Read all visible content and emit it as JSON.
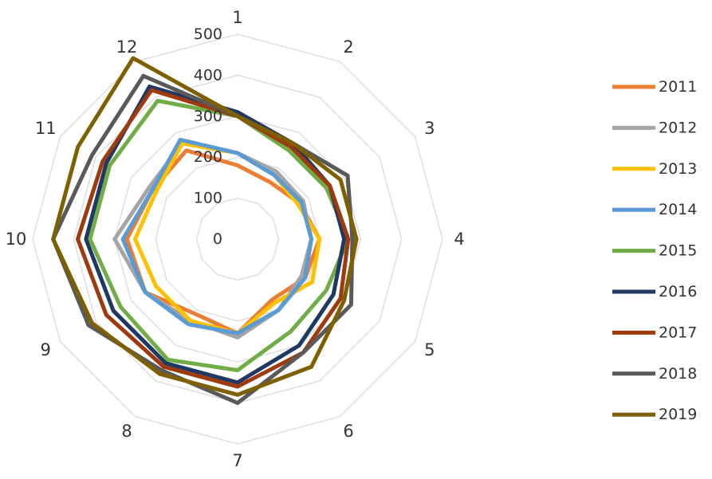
{
  "chart_data": {
    "type": "radar",
    "title": "",
    "categories": [
      "1",
      "2",
      "3",
      "4",
      "5",
      "6",
      "7",
      "8",
      "9",
      "10",
      "11",
      "12"
    ],
    "rlim": [
      0,
      500
    ],
    "r_ticks": [
      "0",
      "100",
      "200",
      "300",
      "400",
      "500"
    ],
    "grid": true,
    "legend_position": "right",
    "series": [
      {
        "name": "2011",
        "color": "#ED7D31",
        "values": [
          180,
          160,
          175,
          200,
          190,
          170,
          230,
          210,
          260,
          270,
          240,
          250
        ]
      },
      {
        "name": "2012",
        "color": "#A5A5A5",
        "values": [
          210,
          190,
          185,
          180,
          180,
          200,
          240,
          230,
          260,
          300,
          250,
          270
        ]
      },
      {
        "name": "2013",
        "color": "#FFC000",
        "values": [
          210,
          180,
          170,
          200,
          210,
          180,
          230,
          230,
          230,
          250,
          230,
          270
        ]
      },
      {
        "name": "2014",
        "color": "#5B9BD5",
        "values": [
          210,
          180,
          180,
          180,
          190,
          200,
          230,
          240,
          260,
          280,
          240,
          280
        ]
      },
      {
        "name": "2015",
        "color": "#70AD47",
        "values": [
          300,
          250,
          250,
          270,
          250,
          260,
          320,
          340,
          330,
          360,
          360,
          390
        ]
      },
      {
        "name": "2016",
        "color": "#203864",
        "values": [
          310,
          270,
          260,
          260,
          270,
          300,
          350,
          350,
          350,
          370,
          370,
          430
        ]
      },
      {
        "name": "2017",
        "color": "#9E3A0E",
        "values": [
          300,
          260,
          260,
          270,
          290,
          320,
          360,
          360,
          370,
          390,
          380,
          420
        ]
      },
      {
        "name": "2018",
        "color": "#595959",
        "values": [
          300,
          270,
          310,
          280,
          320,
          320,
          400,
          370,
          420,
          450,
          410,
          460
        ]
      },
      {
        "name": "2019",
        "color": "#7F6000",
        "values": [
          300,
          270,
          290,
          290,
          300,
          360,
          380,
          380,
          410,
          450,
          450,
          510
        ]
      }
    ]
  }
}
